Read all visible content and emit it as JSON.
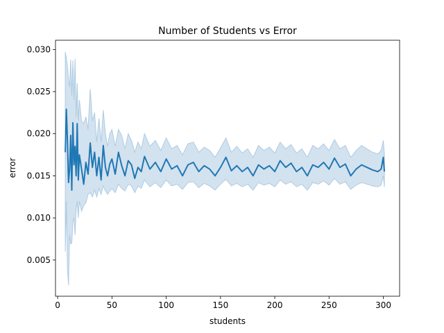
{
  "chart_data": {
    "type": "line",
    "title": "Number of Students vs Error",
    "xlabel": "students",
    "ylabel": "error",
    "xlim": [
      -2,
      315
    ],
    "ylim": [
      0.0007,
      0.0311
    ],
    "xticks": [
      0,
      50,
      100,
      150,
      200,
      250,
      300
    ],
    "xtick_labels": [
      "0",
      "50",
      "100",
      "150",
      "200",
      "250",
      "300"
    ],
    "yticks": [
      0.005,
      0.01,
      0.015,
      0.02,
      0.025,
      0.03
    ],
    "ytick_labels": [
      "0.005",
      "0.010",
      "0.015",
      "0.020",
      "0.025",
      "0.030"
    ],
    "grid": false,
    "legend": "none",
    "series": [
      {
        "color": "#1f77b4",
        "band_color": "#aecbe2",
        "x": [
          7,
          8,
          9,
          10,
          11,
          12,
          13,
          14,
          15,
          16,
          17,
          18,
          19,
          20,
          22,
          24,
          26,
          28,
          30,
          32,
          34,
          36,
          38,
          40,
          42,
          44,
          46,
          48,
          50,
          53,
          56,
          59,
          62,
          65,
          68,
          71,
          74,
          77,
          80,
          85,
          90,
          95,
          100,
          105,
          110,
          115,
          120,
          125,
          130,
          135,
          140,
          145,
          150,
          155,
          160,
          165,
          170,
          175,
          180,
          185,
          190,
          195,
          200,
          205,
          210,
          215,
          220,
          225,
          230,
          235,
          240,
          245,
          250,
          255,
          260,
          265,
          270,
          275,
          280,
          285,
          290,
          295,
          298,
          300,
          301
        ],
        "y": [
          0.0178,
          0.0229,
          0.0192,
          0.0142,
          0.0158,
          0.0198,
          0.0133,
          0.0213,
          0.0163,
          0.0185,
          0.015,
          0.0212,
          0.0145,
          0.0175,
          0.0158,
          0.014,
          0.0166,
          0.0152,
          0.0189,
          0.016,
          0.0178,
          0.015,
          0.0172,
          0.0145,
          0.0186,
          0.016,
          0.015,
          0.0164,
          0.017,
          0.0152,
          0.0178,
          0.0162,
          0.015,
          0.0168,
          0.0163,
          0.0147,
          0.016,
          0.0155,
          0.0173,
          0.0158,
          0.0166,
          0.0155,
          0.017,
          0.0158,
          0.0162,
          0.015,
          0.0163,
          0.0166,
          0.0155,
          0.0162,
          0.0158,
          0.015,
          0.016,
          0.0172,
          0.0156,
          0.0162,
          0.0155,
          0.016,
          0.015,
          0.0163,
          0.0158,
          0.0162,
          0.0155,
          0.0168,
          0.016,
          0.0165,
          0.0155,
          0.016,
          0.015,
          0.0163,
          0.016,
          0.0166,
          0.0158,
          0.0171,
          0.016,
          0.0164,
          0.015,
          0.0158,
          0.0163,
          0.016,
          0.0157,
          0.0155,
          0.0158,
          0.0172,
          0.0155
        ],
        "lower": [
          0.006,
          0.012,
          0.004,
          0.002,
          0.008,
          0.0069,
          0.007,
          0.0095,
          0.01,
          0.008,
          0.011,
          0.012,
          0.01,
          0.012,
          0.0108,
          0.0115,
          0.0118,
          0.0128,
          0.013,
          0.0125,
          0.0133,
          0.0125,
          0.0135,
          0.0128,
          0.0138,
          0.0132,
          0.0128,
          0.0132,
          0.0135,
          0.013,
          0.014,
          0.0135,
          0.0132,
          0.014,
          0.0138,
          0.013,
          0.0138,
          0.0135,
          0.0145,
          0.0137,
          0.0142,
          0.0136,
          0.0145,
          0.0138,
          0.014,
          0.0134,
          0.0142,
          0.0143,
          0.0136,
          0.0141,
          0.0138,
          0.0133,
          0.014,
          0.0146,
          0.0138,
          0.0141,
          0.0137,
          0.014,
          0.0133,
          0.0142,
          0.0139,
          0.0141,
          0.0137,
          0.0145,
          0.014,
          0.0143,
          0.0137,
          0.014,
          0.0133,
          0.0142,
          0.014,
          0.0144,
          0.0139,
          0.0147,
          0.014,
          0.0143,
          0.0134,
          0.0139,
          0.0142,
          0.014,
          0.0138,
          0.0137,
          0.0139,
          0.015,
          0.0137
        ],
        "upper": [
          0.0297,
          0.029,
          0.028,
          0.0265,
          0.0255,
          0.0288,
          0.0245,
          0.0287,
          0.024,
          0.0289,
          0.022,
          0.026,
          0.0215,
          0.024,
          0.0215,
          0.0212,
          0.022,
          0.0205,
          0.0253,
          0.0215,
          0.0225,
          0.019,
          0.0218,
          0.019,
          0.0228,
          0.02,
          0.0185,
          0.02,
          0.0205,
          0.0185,
          0.0205,
          0.0198,
          0.0182,
          0.02,
          0.0192,
          0.0178,
          0.019,
          0.0182,
          0.02,
          0.0185,
          0.0192,
          0.018,
          0.0195,
          0.0182,
          0.0186,
          0.0175,
          0.0188,
          0.019,
          0.0178,
          0.0184,
          0.018,
          0.0172,
          0.0183,
          0.0195,
          0.0178,
          0.0185,
          0.0177,
          0.0182,
          0.0172,
          0.0186,
          0.018,
          0.0184,
          0.0177,
          0.019,
          0.0182,
          0.0187,
          0.0177,
          0.0182,
          0.0172,
          0.0186,
          0.0182,
          0.0188,
          0.018,
          0.0193,
          0.0182,
          0.0186,
          0.0172,
          0.018,
          0.0186,
          0.0182,
          0.0178,
          0.0176,
          0.018,
          0.0192,
          0.0176
        ]
      }
    ]
  }
}
